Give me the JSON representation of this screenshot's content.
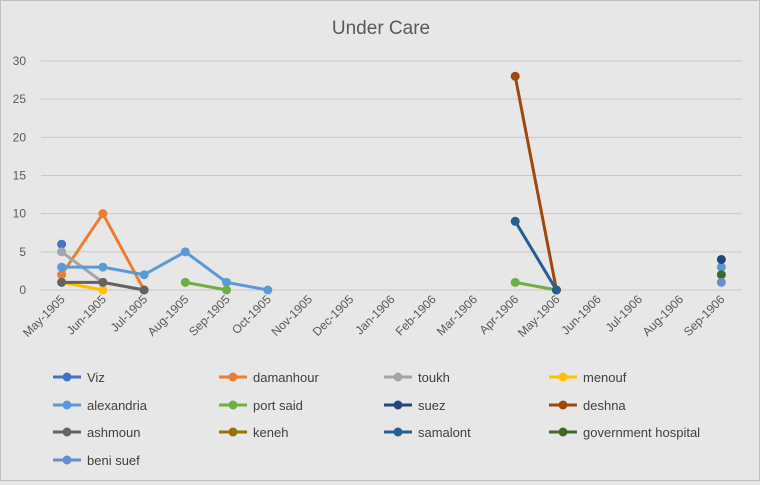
{
  "chart_data": {
    "type": "line",
    "title": "Under Care",
    "xlabel": "",
    "ylabel": "",
    "ylim": [
      0,
      30
    ],
    "yticks": [
      0,
      5,
      10,
      15,
      20,
      25,
      30
    ],
    "grid": true,
    "legend_position": "bottom",
    "categories": [
      "May-1905",
      "Jun-1905",
      "Jul-1905",
      "Aug-1905",
      "Sep-1905",
      "Oct-1905",
      "Nov-1905",
      "Dec-1905",
      "Jan-1906",
      "Feb-1906",
      "Mar-1906",
      "Apr-1906",
      "May-1906",
      "Jun-1906",
      "Jul-1906",
      "Aug-1906",
      "Sep-1906"
    ],
    "series": [
      {
        "name": "Viz",
        "color": "#4472c4",
        "values": [
          6,
          null,
          null,
          null,
          null,
          null,
          null,
          null,
          null,
          null,
          null,
          null,
          null,
          null,
          null,
          null,
          null
        ]
      },
      {
        "name": "damanhour",
        "color": "#ed7d31",
        "values": [
          2,
          10,
          0,
          null,
          null,
          null,
          null,
          null,
          null,
          null,
          null,
          null,
          null,
          null,
          null,
          null,
          null
        ]
      },
      {
        "name": "toukh",
        "color": "#a5a5a5",
        "values": [
          5,
          1,
          0,
          null,
          null,
          null,
          null,
          null,
          null,
          null,
          null,
          null,
          null,
          null,
          null,
          null,
          null
        ]
      },
      {
        "name": "menouf",
        "color": "#ffc000",
        "values": [
          1,
          0,
          null,
          null,
          null,
          null,
          null,
          null,
          null,
          null,
          null,
          null,
          null,
          null,
          null,
          null,
          null
        ]
      },
      {
        "name": "alexandria",
        "color": "#5b9bd5",
        "values": [
          3,
          3,
          2,
          5,
          1,
          0,
          null,
          null,
          null,
          null,
          null,
          null,
          null,
          null,
          null,
          null,
          3
        ]
      },
      {
        "name": "port said",
        "color": "#70ad47",
        "values": [
          null,
          null,
          null,
          1,
          0,
          null,
          null,
          null,
          null,
          null,
          null,
          1,
          0,
          null,
          null,
          null,
          null
        ]
      },
      {
        "name": "suez",
        "color": "#264478",
        "values": [
          null,
          null,
          null,
          null,
          null,
          null,
          null,
          null,
          null,
          null,
          null,
          null,
          null,
          null,
          null,
          null,
          4
        ]
      },
      {
        "name": "deshna",
        "color": "#9e480e",
        "values": [
          null,
          null,
          null,
          null,
          null,
          null,
          null,
          null,
          null,
          null,
          null,
          28,
          0,
          null,
          null,
          null,
          null
        ]
      },
      {
        "name": "ashmoun",
        "color": "#636363",
        "values": [
          1,
          1,
          0,
          null,
          null,
          null,
          null,
          null,
          null,
          null,
          null,
          null,
          null,
          null,
          null,
          null,
          null
        ]
      },
      {
        "name": "keneh",
        "color": "#997300",
        "values": [
          null,
          null,
          null,
          null,
          null,
          null,
          null,
          null,
          null,
          null,
          null,
          null,
          null,
          null,
          null,
          null,
          null
        ]
      },
      {
        "name": "samalont",
        "color": "#255e91",
        "values": [
          null,
          null,
          null,
          null,
          null,
          null,
          null,
          null,
          null,
          null,
          null,
          9,
          0,
          null,
          null,
          null,
          null
        ]
      },
      {
        "name": "government hospital",
        "color": "#43682b",
        "values": [
          null,
          null,
          null,
          null,
          null,
          null,
          null,
          null,
          null,
          null,
          null,
          null,
          null,
          null,
          null,
          null,
          2
        ]
      },
      {
        "name": "beni suef",
        "color": "#698ed0",
        "values": [
          null,
          null,
          null,
          null,
          null,
          null,
          null,
          null,
          null,
          null,
          null,
          null,
          null,
          null,
          null,
          null,
          1
        ]
      }
    ]
  }
}
